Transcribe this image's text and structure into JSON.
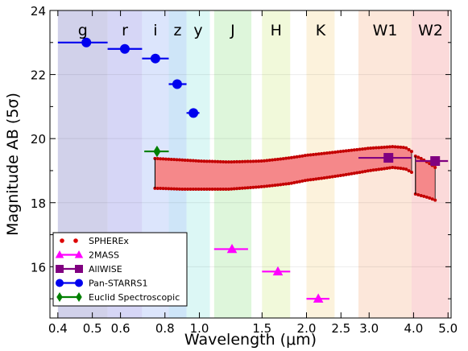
{
  "chart_data": {
    "type": "scatter",
    "title": "",
    "xlabel": "Wavelength (μm)",
    "ylabel": "Magnitude AB  (5σ)",
    "xscale": "log",
    "xlim": [
      0.38,
      5.1
    ],
    "ylim": [
      14.4,
      24.0
    ],
    "x_ticks": [
      {
        "v": 0.4,
        "label": "0.4"
      },
      {
        "v": 0.5,
        "label": "0.5"
      },
      {
        "v": 0.6,
        "label": "0.6"
      },
      {
        "v": 0.8,
        "label": "0.8"
      },
      {
        "v": 1.0,
        "label": "1.0"
      },
      {
        "v": 1.5,
        "label": "1.5"
      },
      {
        "v": 2.0,
        "label": "2.0"
      },
      {
        "v": 2.5,
        "label": "2.5"
      },
      {
        "v": 3.0,
        "label": "3.0"
      },
      {
        "v": 4.0,
        "label": "4.0"
      },
      {
        "v": 5.0,
        "label": "5.0"
      }
    ],
    "y_ticks": [
      {
        "v": 16,
        "label": "16"
      },
      {
        "v": 18,
        "label": "18"
      },
      {
        "v": 20,
        "label": "20"
      },
      {
        "v": 22,
        "label": "22"
      },
      {
        "v": 24,
        "label": "24"
      }
    ],
    "bands": [
      {
        "name": "g",
        "x0": 0.4,
        "x1": 0.552,
        "color": "#c9c9e6"
      },
      {
        "name": "r",
        "x0": 0.552,
        "x1": 0.69,
        "color": "#cfcff5"
      },
      {
        "name": "i",
        "x0": 0.69,
        "x1": 0.82,
        "color": "#d6e1fb"
      },
      {
        "name": "z",
        "x0": 0.82,
        "x1": 0.92,
        "color": "#c6e0f7"
      },
      {
        "name": "y",
        "x0": 0.92,
        "x1": 1.07,
        "color": "#d6f6f3"
      },
      {
        "name": "J",
        "x0": 1.1,
        "x1": 1.4,
        "color": "#d8f5d5"
      },
      {
        "name": "H",
        "x0": 1.5,
        "x1": 1.8,
        "color": "#eef8d4"
      },
      {
        "name": "K",
        "x0": 2.0,
        "x1": 2.4,
        "color": "#fbf0d6"
      },
      {
        "name": "W1",
        "x0": 2.8,
        "x1": 3.95,
        "color": "#fbe3d3"
      },
      {
        "name": "W2",
        "x0": 3.95,
        "x1": 5.05,
        "color": "#fad3d4"
      }
    ],
    "band_label_y": 23.4,
    "spherex_band": {
      "color": "#f5888a",
      "dot_color": "#c40000",
      "upper": [
        [
          0.75,
          19.38
        ],
        [
          0.9,
          19.33
        ],
        [
          1.0,
          19.3
        ],
        [
          1.2,
          19.27
        ],
        [
          1.5,
          19.3
        ],
        [
          1.8,
          19.4
        ],
        [
          2.0,
          19.48
        ],
        [
          2.5,
          19.6
        ],
        [
          3.0,
          19.7
        ],
        [
          3.5,
          19.75
        ],
        [
          3.8,
          19.72
        ],
        [
          3.95,
          19.6
        ]
      ],
      "lower": [
        [
          0.75,
          18.45
        ],
        [
          0.9,
          18.42
        ],
        [
          1.0,
          18.42
        ],
        [
          1.2,
          18.42
        ],
        [
          1.5,
          18.5
        ],
        [
          1.8,
          18.6
        ],
        [
          2.0,
          18.7
        ],
        [
          2.5,
          18.85
        ],
        [
          3.0,
          19.0
        ],
        [
          3.5,
          19.1
        ],
        [
          3.8,
          19.05
        ],
        [
          3.95,
          18.95
        ]
      ],
      "upper2": [
        [
          4.05,
          19.45
        ],
        [
          4.2,
          19.38
        ],
        [
          4.4,
          19.25
        ],
        [
          4.6,
          19.1
        ]
      ],
      "lower2": [
        [
          4.05,
          18.27
        ],
        [
          4.2,
          18.22
        ],
        [
          4.4,
          18.16
        ],
        [
          4.6,
          18.08
        ]
      ]
    },
    "series": [
      {
        "name": "SPHEREx",
        "marker": "dot",
        "color": "#dd0000",
        "points": []
      },
      {
        "name": "2MASS",
        "marker": "triangle",
        "color": "#ff00ff",
        "points": [
          {
            "x": 1.235,
            "y": 16.55,
            "x0": 1.1,
            "x1": 1.37
          },
          {
            "x": 1.662,
            "y": 15.85,
            "x0": 1.5,
            "x1": 1.8
          },
          {
            "x": 2.159,
            "y": 15.0,
            "x0": 2.0,
            "x1": 2.32
          }
        ]
      },
      {
        "name": "AllWISE",
        "marker": "square",
        "color": "#800080",
        "points": [
          {
            "x": 3.4,
            "y": 19.4,
            "x0": 2.8,
            "x1": 3.95
          },
          {
            "x": 4.6,
            "y": 19.3,
            "x0": 4.05,
            "x1": 5.0
          }
        ]
      },
      {
        "name": "Pan-STARRS1",
        "marker": "circle",
        "color": "#0000ee",
        "points": [
          {
            "x": 0.481,
            "y": 23.0,
            "x0": 0.4,
            "x1": 0.552
          },
          {
            "x": 0.617,
            "y": 22.8,
            "x0": 0.552,
            "x1": 0.69
          },
          {
            "x": 0.752,
            "y": 22.5,
            "x0": 0.69,
            "x1": 0.82
          },
          {
            "x": 0.866,
            "y": 21.7,
            "x0": 0.82,
            "x1": 0.92
          },
          {
            "x": 0.962,
            "y": 20.8,
            "x0": 0.92,
            "x1": 1.0
          }
        ]
      },
      {
        "name": "Euclid Spectroscopic",
        "marker": "diamond",
        "color": "#008000",
        "points": [
          {
            "x": 0.76,
            "y": 19.6,
            "x0": 0.7,
            "x1": 0.82
          }
        ]
      }
    ],
    "legend": "lower-left"
  }
}
